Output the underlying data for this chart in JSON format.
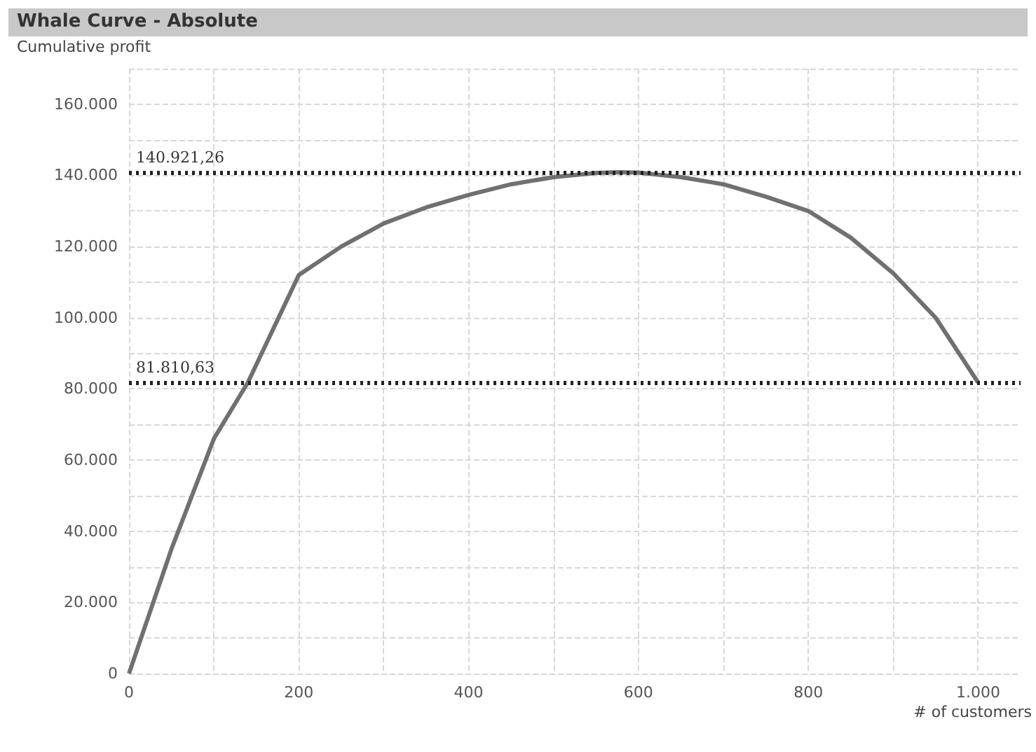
{
  "chart_data": {
    "type": "line",
    "title": "Whale Curve - Absolute",
    "xlabel": "# of customers",
    "ylabel": "Cumulative profit",
    "x": [
      0,
      50,
      100,
      140,
      200,
      250,
      300,
      350,
      400,
      450,
      500,
      550,
      575,
      600,
      650,
      700,
      750,
      800,
      850,
      900,
      950,
      1000
    ],
    "series": [
      {
        "color": "#707070",
        "values": [
          0,
          35000,
          66000,
          81800,
          112000,
          120000,
          126500,
          131000,
          134500,
          137500,
          139500,
          140700,
          140900,
          140800,
          139500,
          137500,
          134000,
          130000,
          122500,
          112500,
          100000,
          81800
        ]
      }
    ],
    "xlim": [
      0,
      1050
    ],
    "ylim": [
      0,
      170000
    ],
    "xticks": [
      {
        "value": 0,
        "label": "0"
      },
      {
        "value": 100,
        "label": null
      },
      {
        "value": 200,
        "label": "200"
      },
      {
        "value": 300,
        "label": null
      },
      {
        "value": 400,
        "label": "400"
      },
      {
        "value": 500,
        "label": null
      },
      {
        "value": 600,
        "label": "600"
      },
      {
        "value": 700,
        "label": null
      },
      {
        "value": 800,
        "label": "800"
      },
      {
        "value": 900,
        "label": null
      },
      {
        "value": 1000,
        "label": "1.000"
      }
    ],
    "yticks": [
      {
        "value": 0,
        "label": "0"
      },
      {
        "value": 10000,
        "label": null
      },
      {
        "value": 20000,
        "label": "20.000"
      },
      {
        "value": 30000,
        "label": null
      },
      {
        "value": 40000,
        "label": "40.000"
      },
      {
        "value": 50000,
        "label": null
      },
      {
        "value": 60000,
        "label": "60.000"
      },
      {
        "value": 70000,
        "label": null
      },
      {
        "value": 80000,
        "label": "80.000"
      },
      {
        "value": 90000,
        "label": null
      },
      {
        "value": 100000,
        "label": "100.000"
      },
      {
        "value": 110000,
        "label": null
      },
      {
        "value": 120000,
        "label": "120.000"
      },
      {
        "value": 130000,
        "label": null
      },
      {
        "value": 140000,
        "label": "140.000"
      },
      {
        "value": 150000,
        "label": null
      },
      {
        "value": 160000,
        "label": "160.000"
      },
      {
        "value": 170000,
        "label": null
      }
    ],
    "ref_lines": [
      {
        "axis": "y",
        "value": 140921.26,
        "label": "140.921,26",
        "color": "#222222",
        "line_style": "dotted"
      },
      {
        "axis": "y",
        "value": 81810.63,
        "label": "81.810,63",
        "color": "#222222",
        "line_style": "dotted"
      }
    ],
    "grid": true,
    "marker": "none",
    "line_style": "solid"
  }
}
